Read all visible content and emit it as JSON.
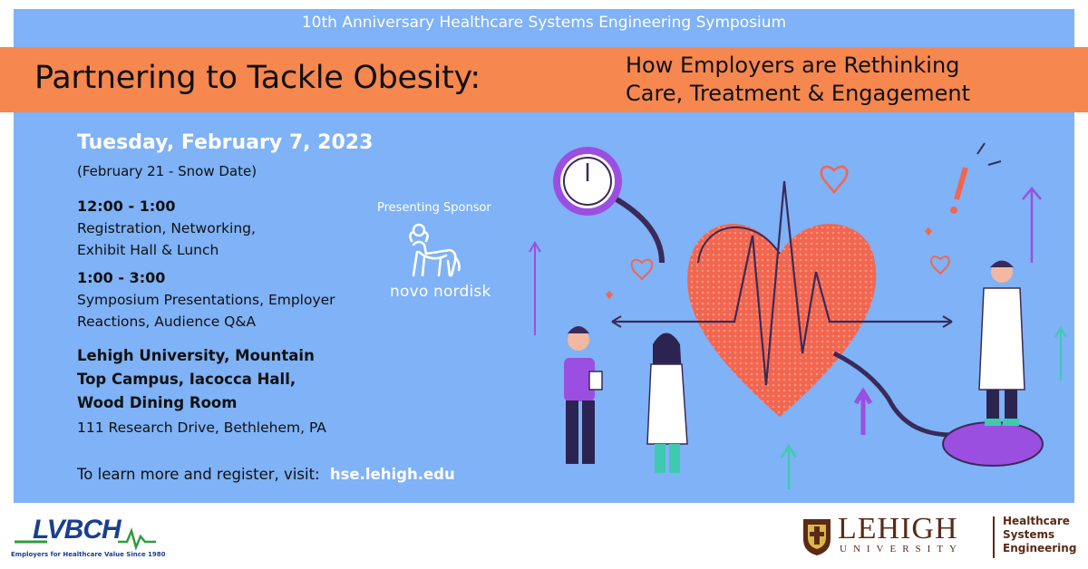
{
  "header": {
    "top_title": "10th Anniversary Healthcare Systems Engineering Symposium",
    "main_title": "Partnering to Tackle Obesity:",
    "subtitle_line1": "How Employers are Rethinking",
    "subtitle_line2": "Care, Treatment & Engagement"
  },
  "event": {
    "date": "Tuesday, February 7, 2023",
    "snow_date": "(February 21 - Snow Date)",
    "schedule": [
      {
        "time": "12:00 - 1:00",
        "line1": "Registration, Networking,",
        "line2": "Exhibit Hall & Lunch"
      },
      {
        "time": "1:00 - 3:00",
        "line1": "Symposium Presentations, Employer",
        "line2": "Reactions, Audience Q&A"
      }
    ],
    "venue_line1": "Lehigh University, Mountain",
    "venue_line2": "Top Campus, Iacocca Hall,",
    "venue_line3": "Wood Dining Room",
    "address": "111 Research Drive, Bethlehem, PA",
    "register_text": "To learn more and register, visit:",
    "register_url": "hse.lehigh.edu"
  },
  "sponsor": {
    "label": "Presenting Sponsor",
    "name": "novo nordisk",
    "icon": "bull-icon"
  },
  "footer": {
    "lvbch_logo": "LVBCH",
    "lvbch_tagline": "Employers for Healthcare Value Since 1980",
    "lehigh_name": "LEHIGH",
    "lehigh_univ": "UNIVERSITY",
    "hse_line1": "Healthcare",
    "hse_line2": "Systems",
    "hse_line3": "Engineering"
  },
  "colors": {
    "panel": "#7fb2f6",
    "banner": "#f5874f",
    "heart": "#f2664f",
    "accent_purple": "#9b4fe0",
    "lehigh_brown": "#5a2a16",
    "lvbch_blue": "#1a3f8f",
    "lvbch_green": "#2e9d3e"
  }
}
